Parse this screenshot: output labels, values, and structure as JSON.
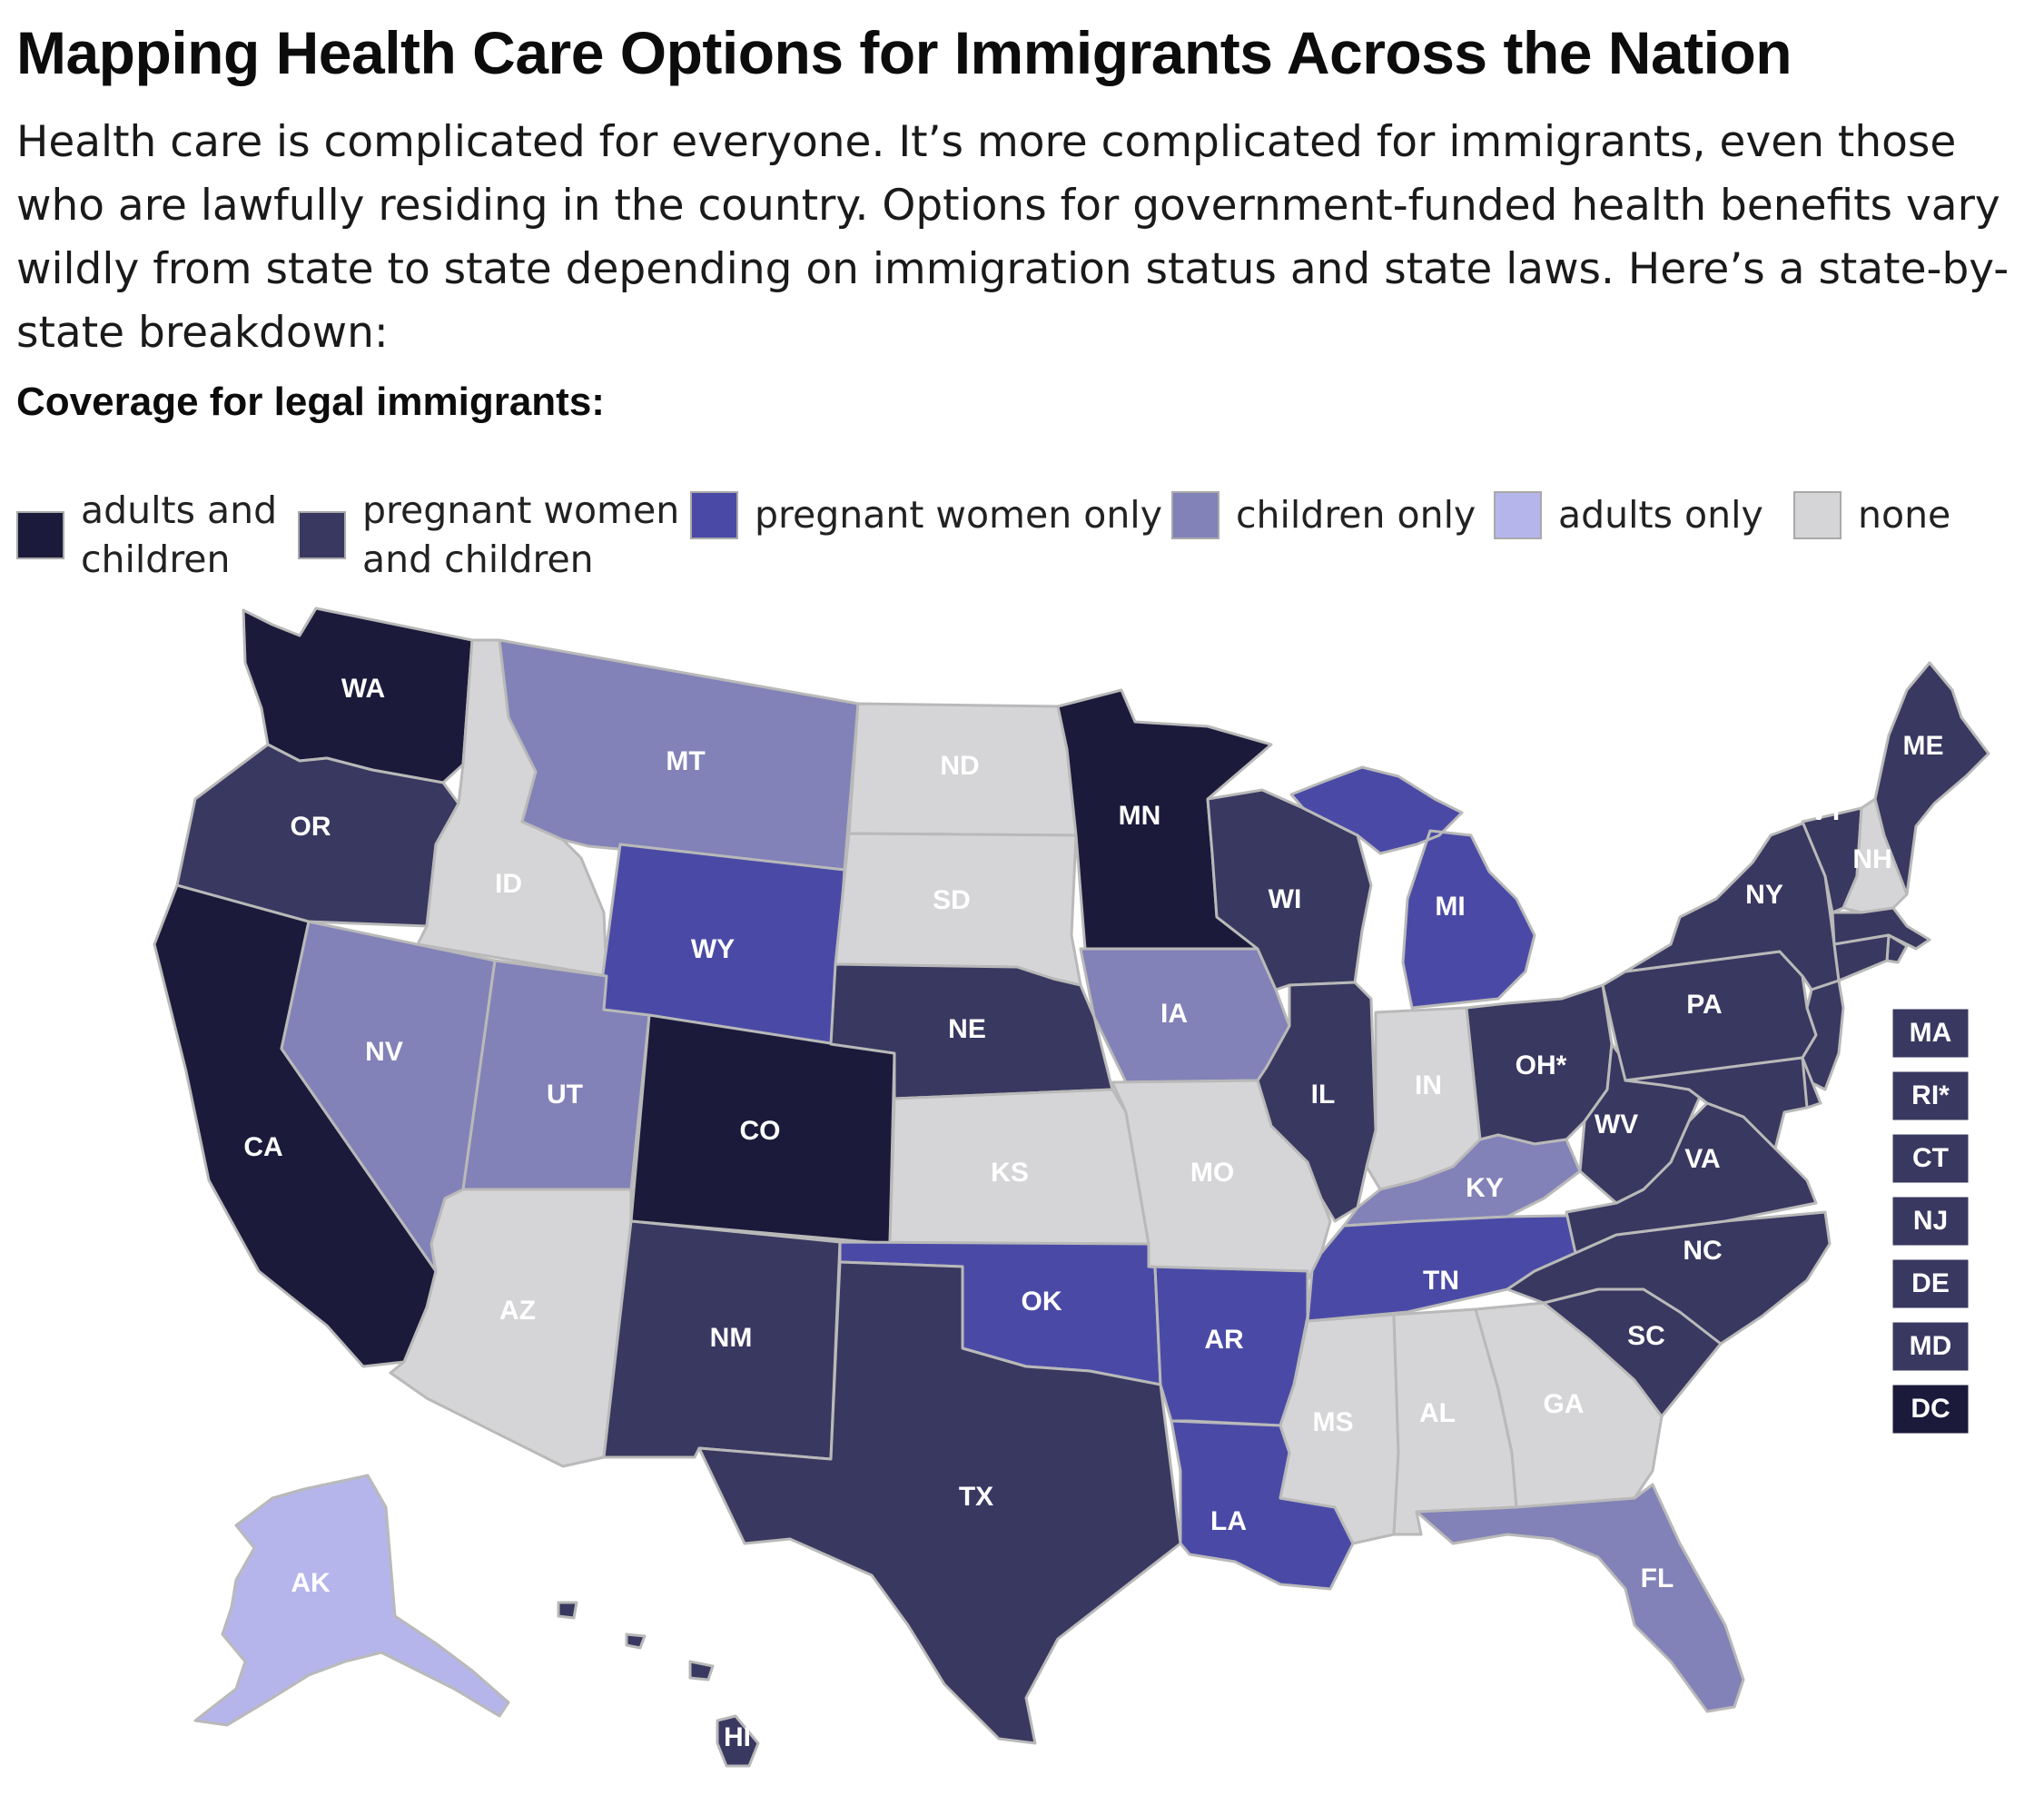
{
  "title": "Mapping Health Care Options for Immigrants Across the Nation",
  "intro": "Health care is complicated for everyone. It’s more complicated for immigrants, even those who are lawfully residing in the country. Options for government-funded health benefits vary wildly from state to state depending on immigration status and state laws. Here’s a state-by-state breakdown:",
  "legend": {
    "title": "Coverage for legal immigrants:",
    "items": [
      {
        "key": "ac",
        "label": "adults and children",
        "color": "#1b1a3b"
      },
      {
        "key": "pwc",
        "label": "pregnant women and children",
        "color": "#383860"
      },
      {
        "key": "pw",
        "label": "pregnant women only",
        "color": "#4a4aa6"
      },
      {
        "key": "c",
        "label": "children only",
        "color": "#8282b8"
      },
      {
        "key": "a",
        "label": "adults only",
        "color": "#b5b5ec"
      },
      {
        "key": "n",
        "label": "none",
        "color": "#d5d5d7"
      }
    ]
  },
  "states": [
    {
      "abbr": "WA",
      "coverage": "ac"
    },
    {
      "abbr": "OR",
      "coverage": "pwc"
    },
    {
      "abbr": "CA",
      "coverage": "ac"
    },
    {
      "abbr": "ID",
      "coverage": "n"
    },
    {
      "abbr": "NV",
      "coverage": "c"
    },
    {
      "abbr": "MT",
      "coverage": "c"
    },
    {
      "abbr": "WY",
      "coverage": "pw"
    },
    {
      "abbr": "UT",
      "coverage": "c"
    },
    {
      "abbr": "CO",
      "coverage": "ac"
    },
    {
      "abbr": "AZ",
      "coverage": "n"
    },
    {
      "abbr": "NM",
      "coverage": "pwc"
    },
    {
      "abbr": "ND",
      "coverage": "n"
    },
    {
      "abbr": "SD",
      "coverage": "n"
    },
    {
      "abbr": "NE",
      "coverage": "pwc"
    },
    {
      "abbr": "KS",
      "coverage": "n"
    },
    {
      "abbr": "OK",
      "coverage": "pw"
    },
    {
      "abbr": "TX",
      "coverage": "pwc"
    },
    {
      "abbr": "MN",
      "coverage": "ac"
    },
    {
      "abbr": "IA",
      "coverage": "c"
    },
    {
      "abbr": "MO",
      "coverage": "n"
    },
    {
      "abbr": "AR",
      "coverage": "pw"
    },
    {
      "abbr": "LA",
      "coverage": "pw"
    },
    {
      "abbr": "WI",
      "coverage": "pwc"
    },
    {
      "abbr": "IL",
      "coverage": "pwc"
    },
    {
      "abbr": "MI",
      "coverage": "pw"
    },
    {
      "abbr": "IN",
      "coverage": "n"
    },
    {
      "abbr": "OH*",
      "coverage": "pwc"
    },
    {
      "abbr": "KY",
      "coverage": "c"
    },
    {
      "abbr": "TN",
      "coverage": "pw"
    },
    {
      "abbr": "MS",
      "coverage": "n"
    },
    {
      "abbr": "AL",
      "coverage": "n"
    },
    {
      "abbr": "GA",
      "coverage": "n"
    },
    {
      "abbr": "FL",
      "coverage": "c"
    },
    {
      "abbr": "SC",
      "coverage": "pwc"
    },
    {
      "abbr": "NC",
      "coverage": "pwc"
    },
    {
      "abbr": "VA",
      "coverage": "pwc"
    },
    {
      "abbr": "WV",
      "coverage": "pwc"
    },
    {
      "abbr": "PA",
      "coverage": "pwc"
    },
    {
      "abbr": "NY",
      "coverage": "pwc"
    },
    {
      "abbr": "VT",
      "coverage": "pwc"
    },
    {
      "abbr": "NH",
      "coverage": "n"
    },
    {
      "abbr": "ME",
      "coverage": "pwc"
    },
    {
      "abbr": "AK",
      "coverage": "a"
    },
    {
      "abbr": "HI",
      "coverage": "pwc"
    }
  ],
  "small_states": [
    {
      "abbr": "MA",
      "coverage": "pwc"
    },
    {
      "abbr": "RI*",
      "coverage": "pwc"
    },
    {
      "abbr": "CT",
      "coverage": "pwc"
    },
    {
      "abbr": "NJ",
      "coverage": "pwc"
    },
    {
      "abbr": "DE",
      "coverage": "pwc"
    },
    {
      "abbr": "MD",
      "coverage": "pwc"
    },
    {
      "abbr": "DC",
      "coverage": "ac"
    }
  ]
}
